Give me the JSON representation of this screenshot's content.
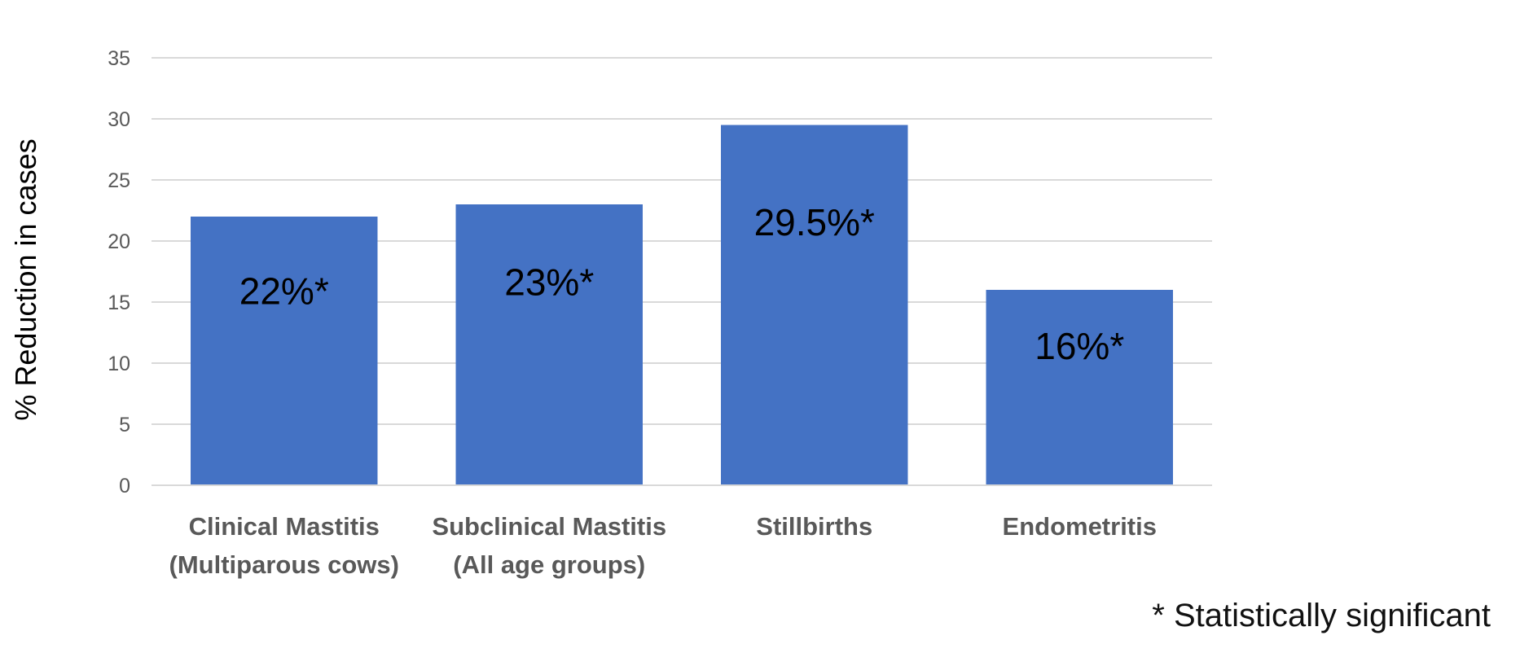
{
  "chart_data": {
    "type": "bar",
    "categories": [
      [
        "Clinical Mastitis",
        "(Multiparous cows)"
      ],
      [
        "Subclinical Mastitis",
        "(All age groups)"
      ],
      [
        "Stillbirths"
      ],
      [
        "Endometritis"
      ]
    ],
    "values": [
      22,
      23,
      29.5,
      16
    ],
    "data_labels": [
      "22%*",
      "23%*",
      "29.5%*",
      "16%*"
    ],
    "ylabel": "% Reduction in cases",
    "xlabel": "",
    "ylim": [
      0,
      35
    ],
    "yticks": [
      0,
      5,
      10,
      15,
      20,
      25,
      30,
      35
    ],
    "grid": true,
    "legend": "none",
    "colors": {
      "bar": "#4472C4",
      "grid": "#D9D9D9",
      "tick_label": "#595959",
      "category_label": "#595959",
      "data_label": "#000000",
      "axis_title": "#000000"
    }
  },
  "footnote": "* Statistically significant"
}
